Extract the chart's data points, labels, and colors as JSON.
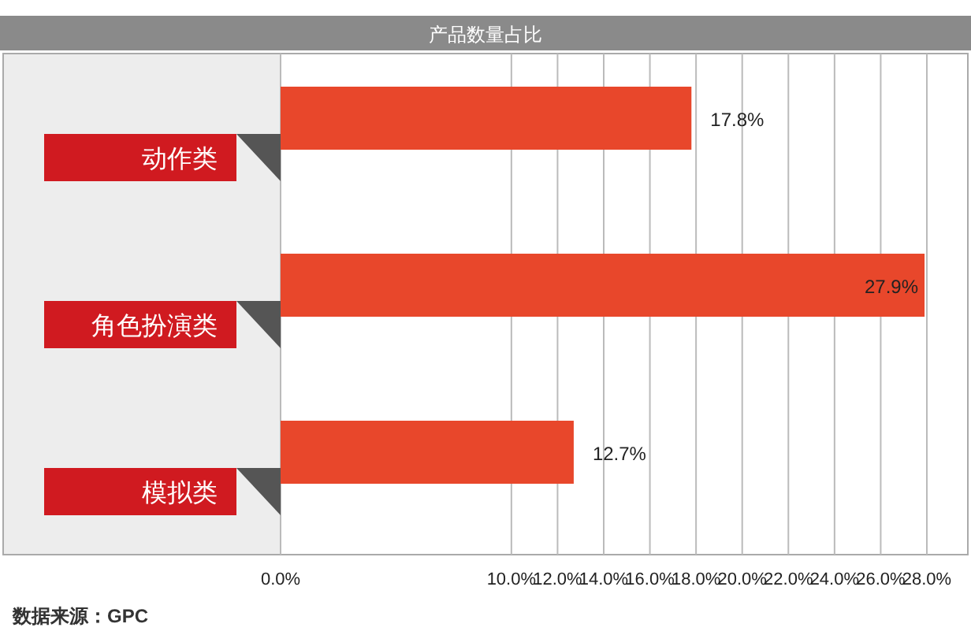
{
  "chart_data": {
    "type": "bar",
    "orientation": "horizontal",
    "title": "产品数量占比",
    "categories": [
      "动作类",
      "角色扮演类",
      "模拟类"
    ],
    "values": [
      17.8,
      27.9,
      12.7
    ],
    "value_labels": [
      "17.8%",
      "27.9%",
      "12.7%"
    ],
    "color": "#e8472b",
    "xlim": [
      0,
      28
    ],
    "xticks": [
      {
        "value": 0,
        "label": "0.0%"
      },
      {
        "value": 10,
        "label": "10.0%"
      },
      {
        "value": 12,
        "label": "12.0%"
      },
      {
        "value": 14,
        "label": "14.0%"
      },
      {
        "value": 16,
        "label": "16.0%"
      },
      {
        "value": 18,
        "label": "18.0%"
      },
      {
        "value": 20,
        "label": "20.0%"
      },
      {
        "value": 22,
        "label": "22.0%"
      },
      {
        "value": 24,
        "label": "24.0%"
      },
      {
        "value": 26,
        "label": "26.0%"
      },
      {
        "value": 28,
        "label": "28.0%"
      }
    ],
    "grid": "x",
    "annotations": [
      "数据来源：GPC"
    ]
  }
}
